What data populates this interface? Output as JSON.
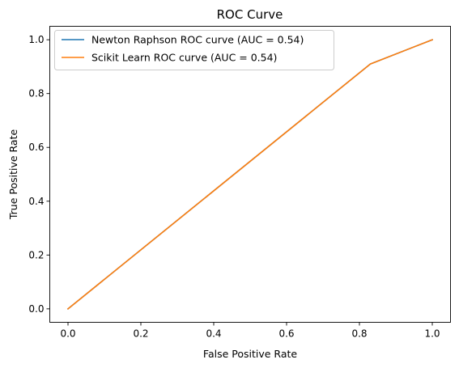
{
  "chart_data": {
    "type": "line",
    "title": "ROC Curve",
    "xlabel": "False Positive Rate",
    "ylabel": "True Positive Rate",
    "xlim": [
      -0.05,
      1.05
    ],
    "ylim": [
      -0.05,
      1.05
    ],
    "xticks": [
      "0.0",
      "0.2",
      "0.4",
      "0.6",
      "0.8",
      "1.0"
    ],
    "yticks": [
      "0.0",
      "0.2",
      "0.4",
      "0.6",
      "0.8",
      "1.0"
    ],
    "grid": false,
    "legend_position": "upper-left",
    "series": [
      {
        "name": "Newton Raphson ROC curve (AUC = 0.54)",
        "color": "#1f77b4",
        "x": [
          0.0,
          0.83,
          1.0
        ],
        "y": [
          0.0,
          0.91,
          1.0
        ]
      },
      {
        "name": "Scikit Learn ROC curve (AUC = 0.54)",
        "color": "#ff7f0e",
        "x": [
          0.0,
          0.83,
          1.0
        ],
        "y": [
          0.0,
          0.91,
          1.0
        ]
      }
    ]
  }
}
